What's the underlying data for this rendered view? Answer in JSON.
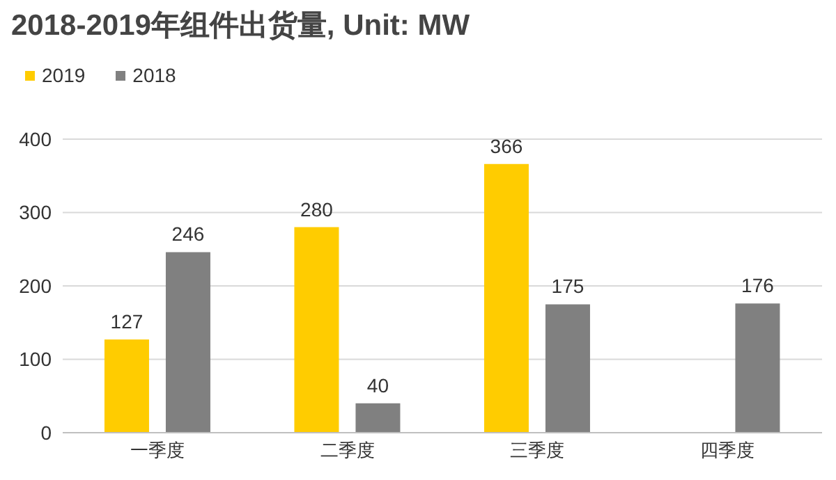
{
  "chart_data": {
    "type": "bar",
    "title": "2018-2019年组件出货量, Unit: MW",
    "categories": [
      "一季度",
      "二季度",
      "三季度",
      "四季度"
    ],
    "series": [
      {
        "name": "2019",
        "color": "#ffcc00",
        "values": [
          127,
          280,
          366,
          null
        ]
      },
      {
        "name": "2018",
        "color": "#808080",
        "values": [
          246,
          40,
          175,
          176
        ]
      }
    ],
    "ylim": [
      0,
      400
    ],
    "yticks": [
      0,
      100,
      200,
      300,
      400
    ],
    "grid": "y",
    "legend": "top left",
    "data_labels": true
  }
}
